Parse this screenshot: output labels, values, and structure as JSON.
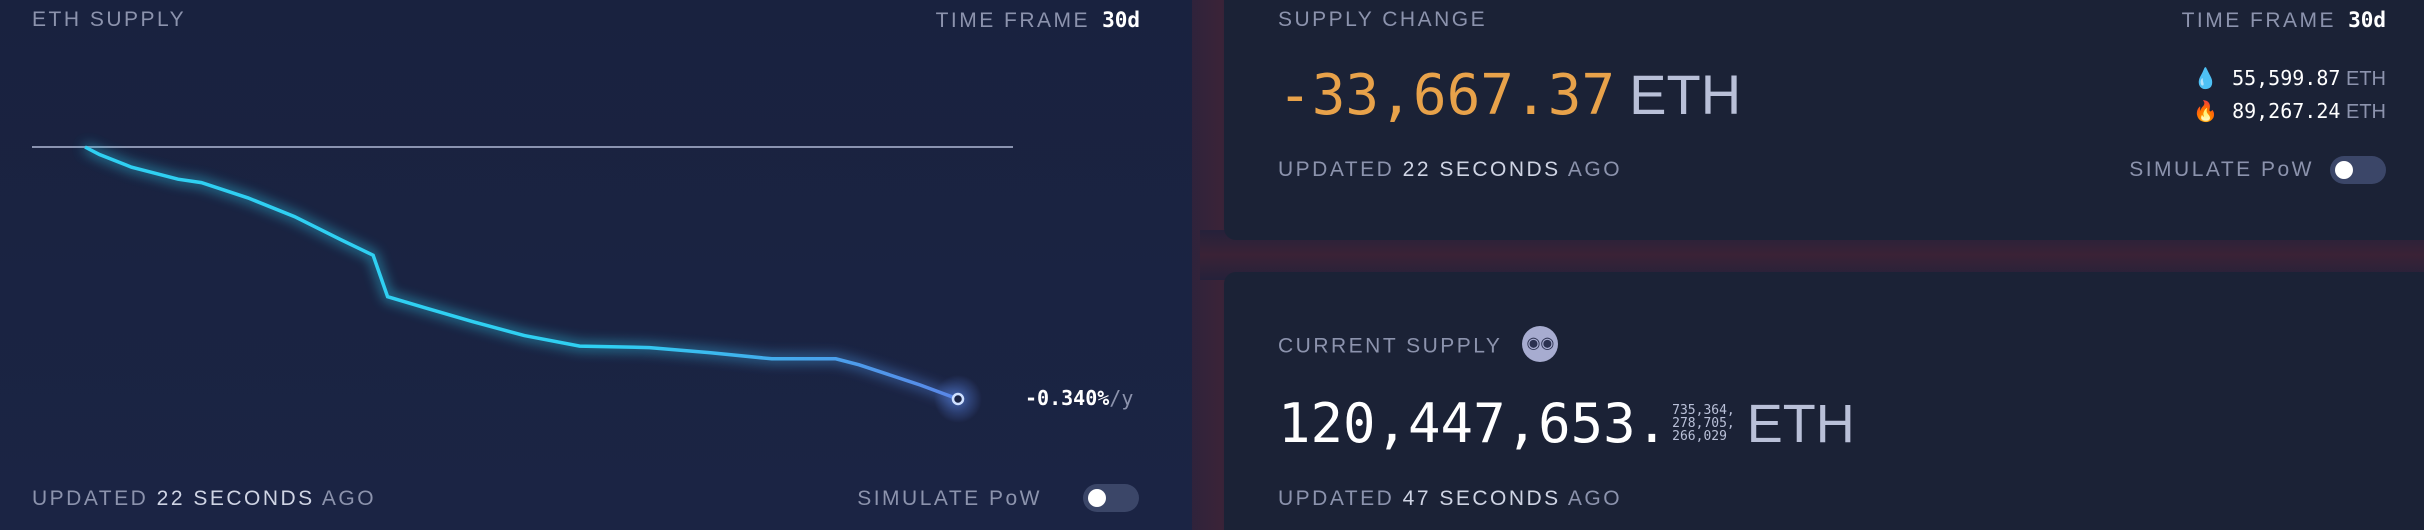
{
  "eth_supply_card": {
    "title": "ETH SUPPLY",
    "time_frame_label": "TIME FRAME",
    "time_frame_value": "30d",
    "rate_value": "-0.340%",
    "rate_unit": "/y",
    "updated_prefix": "UPDATED",
    "updated_value": "22 SECONDS",
    "updated_suffix": "AGO",
    "simulate_label": "SIMULATE PoW",
    "simulate_on": false
  },
  "supply_change_card": {
    "title": "SUPPLY CHANGE",
    "time_frame_label": "TIME FRAME",
    "time_frame_value": "30d",
    "value": "-33,667.37",
    "unit": "ETH",
    "issued_icon": "water-drop-icon",
    "issued_value": "55,599.87",
    "issued_unit": "ETH",
    "burned_icon": "fire-icon",
    "burned_value": "89,267.24",
    "burned_unit": "ETH",
    "updated_prefix": "UPDATED",
    "updated_value": "22 SECONDS",
    "updated_suffix": "AGO",
    "simulate_label": "SIMULATE PoW",
    "simulate_on": false,
    "value_color": "#e8a24a"
  },
  "current_supply_card": {
    "title": "CURRENT SUPPLY",
    "title_icon": "nerd-face-icon",
    "integer": "120,447,653",
    "decimal_sep": ".",
    "fraction_lines": [
      "735,364,",
      "278,705,",
      "266,029"
    ],
    "unit": "ETH",
    "updated_prefix": "UPDATED",
    "updated_value": "47 SECONDS",
    "updated_suffix": "AGO"
  },
  "chart_data": {
    "type": "line",
    "title": "",
    "xlabel": "",
    "ylabel": "",
    "grid": false,
    "reference_line": 0,
    "x": [
      0,
      0.5,
      1.6,
      3.2,
      4.0,
      5.6,
      7.2,
      8.8,
      9.9,
      10.4,
      11.7,
      13.3,
      15.1,
      17.0,
      19.4,
      21.5,
      23.6,
      25.8,
      26.6,
      28.7,
      30
    ],
    "series": [
      {
        "values": [
          0,
          -1000,
          -2700,
          -4300,
          -4750,
          -6800,
          -9300,
          -12400,
          -14450,
          -20000,
          -21500,
          -23300,
          -25200,
          -26600,
          -26800,
          -27500,
          -28300,
          -28300,
          -29100,
          -31800,
          -33667
        ]
      }
    ],
    "colors": {
      "start": "#2fd0f2",
      "end": "#5a86e8",
      "reference": "#8a93b0"
    }
  }
}
